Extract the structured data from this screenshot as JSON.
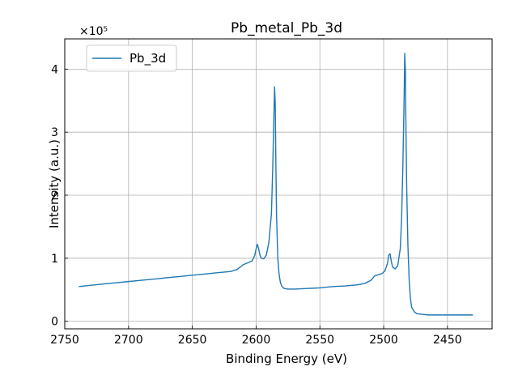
{
  "chart_data": {
    "type": "line",
    "title": "Pb_metal_Pb_3d",
    "xlabel": "Binding Energy (eV)",
    "ylabel": "Intensity (a.u.)",
    "y_multiplier_label": "×10⁵",
    "x_reversed": true,
    "xlim": [
      2750,
      2415
    ],
    "ylim": [
      -0.12,
      4.48
    ],
    "x_ticks": [
      2750,
      2700,
      2650,
      2600,
      2550,
      2500,
      2450
    ],
    "x_tick_labels": [
      "2750",
      "2700",
      "2650",
      "2600",
      "2550",
      "2500",
      "2450"
    ],
    "y_ticks": [
      0,
      1,
      2,
      3,
      4
    ],
    "y_tick_labels": [
      "0",
      "1",
      "2",
      "3",
      "4"
    ],
    "grid": true,
    "legend_position": "top-left",
    "series": [
      {
        "name": "Pb_3d",
        "color": "#1f77b4",
        "x": [
          2739,
          2730,
          2720,
          2710,
          2700,
          2690,
          2680,
          2670,
          2660,
          2650,
          2640,
          2630,
          2620,
          2615,
          2610,
          2606,
          2603,
          2601,
          2600,
          2599,
          2598,
          2597,
          2596,
          2594,
          2592,
          2590,
          2588,
          2587,
          2586,
          2585.5,
          2585,
          2584.5,
          2584,
          2583,
          2582,
          2581,
          2580,
          2578,
          2575,
          2570,
          2560,
          2550,
          2540,
          2530,
          2520,
          2515,
          2510,
          2507,
          2504,
          2501,
          2499,
          2497,
          2496,
          2495,
          2494,
          2493,
          2491,
          2489,
          2487,
          2486,
          2485,
          2484,
          2483.5,
          2483,
          2482.5,
          2482,
          2481,
          2480,
          2479,
          2478,
          2476,
          2474,
          2470,
          2465,
          2460,
          2450,
          2440,
          2430
        ],
        "y": [
          0.55,
          0.57,
          0.59,
          0.61,
          0.63,
          0.65,
          0.67,
          0.69,
          0.71,
          0.73,
          0.75,
          0.77,
          0.79,
          0.82,
          0.9,
          0.93,
          0.96,
          1.05,
          1.15,
          1.22,
          1.15,
          1.05,
          1.0,
          0.99,
          1.05,
          1.25,
          1.7,
          2.4,
          3.3,
          3.72,
          3.45,
          2.5,
          1.7,
          1.0,
          0.75,
          0.62,
          0.56,
          0.52,
          0.51,
          0.51,
          0.52,
          0.53,
          0.55,
          0.56,
          0.58,
          0.6,
          0.65,
          0.72,
          0.74,
          0.76,
          0.8,
          0.92,
          1.05,
          1.07,
          0.95,
          0.86,
          0.83,
          0.88,
          1.15,
          1.6,
          2.4,
          3.5,
          4.25,
          4.0,
          3.0,
          2.2,
          1.2,
          0.65,
          0.35,
          0.22,
          0.15,
          0.12,
          0.11,
          0.1,
          0.1,
          0.1,
          0.1,
          0.1
        ]
      }
    ]
  }
}
